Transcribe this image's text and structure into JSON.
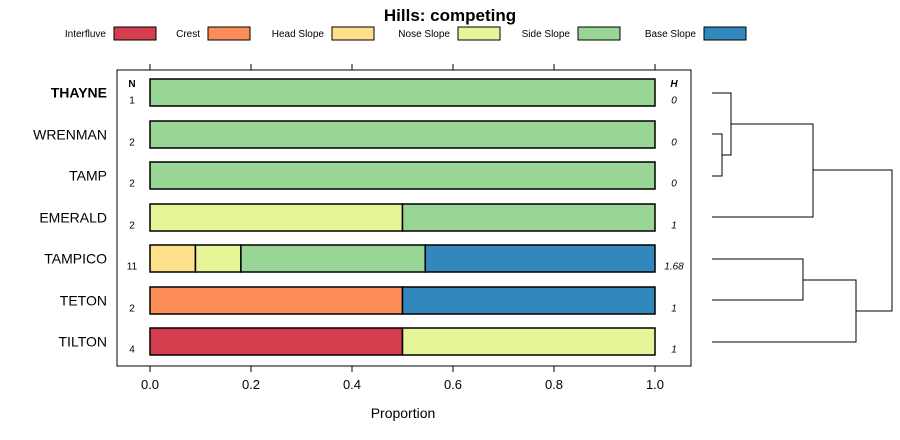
{
  "chart_data": {
    "type": "bar",
    "stacked": true,
    "orientation": "horizontal",
    "title": "Hills: competing",
    "xlabel": "Proportion",
    "xlim": [
      0,
      1
    ],
    "xticks": [
      "0.0",
      "0.2",
      "0.4",
      "0.6",
      "0.8",
      "1.0"
    ],
    "n_header": "N",
    "h_header": "H",
    "legend": [
      {
        "name": "Interfluve",
        "color": "#D53E4F"
      },
      {
        "name": "Crest",
        "color": "#FC8D59"
      },
      {
        "name": "Head Slope",
        "color": "#FEE08B"
      },
      {
        "name": "Nose Slope",
        "color": "#E6F598"
      },
      {
        "name": "Side Slope",
        "color": "#99D594"
      },
      {
        "name": "Base Slope",
        "color": "#3288BD"
      }
    ],
    "categories": [
      "THAYNE",
      "WRENMAN",
      "TAMP",
      "EMERALD",
      "TAMPICO",
      "TETON",
      "TILTON"
    ],
    "highlight": "THAYNE",
    "n": [
      "1",
      "2",
      "2",
      "2",
      "11",
      "2",
      "4"
    ],
    "h": [
      "0",
      "0",
      "0",
      "1",
      "1.68",
      "1",
      "1"
    ],
    "series": [
      {
        "name": "Interfluve",
        "values": [
          0,
          0,
          0,
          0,
          0,
          0,
          0.5
        ]
      },
      {
        "name": "Crest",
        "values": [
          0,
          0,
          0,
          0,
          0,
          0.5,
          0
        ]
      },
      {
        "name": "Head Slope",
        "values": [
          0,
          0,
          0,
          0,
          0.09,
          0,
          0
        ]
      },
      {
        "name": "Nose Slope",
        "values": [
          0,
          0,
          0,
          0.5,
          0.09,
          0,
          0.5
        ]
      },
      {
        "name": "Side Slope",
        "values": [
          1,
          1,
          1,
          0.5,
          0.365,
          0,
          0
        ]
      },
      {
        "name": "Base Slope",
        "values": [
          0,
          0,
          0,
          0,
          0.455,
          0.5,
          0
        ]
      }
    ],
    "dendrogram": {
      "merges": [
        {
          "left": "WRENMAN",
          "right": "TAMP",
          "height": 0
        },
        {
          "left": "THAYNE",
          "right": "WRENMAN+TAMP",
          "height": 0
        },
        {
          "left": "THAYNE+WRENMAN+TAMP",
          "right": "EMERALD",
          "height": 1
        },
        {
          "left": "TAMPICO",
          "right": "TETON",
          "height": 1
        },
        {
          "left": "TAMPICO+TETON",
          "right": "TILTON",
          "height": 1
        },
        {
          "left": "upper",
          "right": "lower",
          "height": 2
        }
      ]
    }
  }
}
